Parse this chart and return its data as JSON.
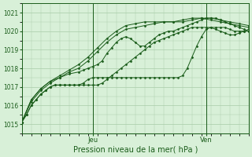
{
  "bg_color": "#d8f0d8",
  "grid_color": "#a8cca8",
  "line_color": "#1a5c1a",
  "xlabel": "Pression niveau de la mer( hPa )",
  "xlim": [
    0,
    96
  ],
  "ylim": [
    1014.5,
    1021.5
  ],
  "yticks": [
    1015,
    1016,
    1017,
    1018,
    1019,
    1020,
    1021
  ],
  "jeu_x": 30,
  "ven_x": 78,
  "series": [
    {
      "x": [
        0,
        2,
        4,
        6,
        8,
        10,
        12,
        14,
        16,
        18,
        20,
        22,
        24,
        26,
        28,
        30,
        32,
        34,
        36,
        38,
        40,
        42,
        44,
        46,
        48,
        50,
        52,
        54,
        56,
        58,
        60,
        62,
        64,
        66,
        68,
        70,
        72,
        74,
        76,
        78,
        80,
        82,
        84,
        86,
        88,
        90,
        92,
        94,
        96
      ],
      "y": [
        1015.1,
        1015.5,
        1016.0,
        1016.3,
        1016.6,
        1016.8,
        1017.0,
        1017.1,
        1017.1,
        1017.1,
        1017.1,
        1017.1,
        1017.1,
        1017.1,
        1017.1,
        1017.1,
        1017.1,
        1017.2,
        1017.4,
        1017.6,
        1017.8,
        1018.0,
        1018.2,
        1018.4,
        1018.6,
        1018.8,
        1019.0,
        1019.2,
        1019.4,
        1019.5,
        1019.6,
        1019.7,
        1019.8,
        1019.9,
        1020.0,
        1020.1,
        1020.2,
        1020.2,
        1020.2,
        1020.2,
        1020.2,
        1020.1,
        1020.0,
        1019.9,
        1019.8,
        1019.8,
        1019.9,
        1020.0,
        1020.1
      ]
    },
    {
      "x": [
        0,
        4,
        8,
        12,
        16,
        20,
        24,
        28,
        32,
        36,
        40,
        44,
        48,
        52,
        56,
        60,
        64,
        68,
        72,
        76,
        80,
        84,
        88,
        92,
        96
      ],
      "y": [
        1015.1,
        1016.2,
        1016.8,
        1017.2,
        1017.5,
        1017.8,
        1018.0,
        1018.4,
        1018.9,
        1019.4,
        1019.8,
        1020.1,
        1020.2,
        1020.3,
        1020.4,
        1020.5,
        1020.5,
        1020.6,
        1020.7,
        1020.7,
        1020.6,
        1020.5,
        1020.4,
        1020.3,
        1020.2
      ]
    },
    {
      "x": [
        0,
        4,
        8,
        12,
        16,
        20,
        24,
        28,
        32,
        36,
        40,
        44,
        48,
        52,
        56,
        60,
        64,
        68,
        72,
        76,
        80,
        84,
        88,
        92,
        96
      ],
      "y": [
        1015.1,
        1016.3,
        1016.9,
        1017.3,
        1017.6,
        1017.9,
        1018.2,
        1018.6,
        1019.1,
        1019.6,
        1020.0,
        1020.3,
        1020.4,
        1020.5,
        1020.5,
        1020.5,
        1020.5,
        1020.5,
        1020.6,
        1020.7,
        1020.7,
        1020.6,
        1020.5,
        1020.4,
        1020.3
      ]
    },
    {
      "x": [
        0,
        4,
        8,
        12,
        16,
        20,
        24,
        26,
        28,
        30,
        32,
        34,
        36,
        38,
        40,
        42,
        44,
        46,
        48,
        50,
        52,
        54,
        56,
        58,
        60,
        62,
        64,
        66,
        68,
        70,
        72,
        74,
        76,
        78,
        80,
        82,
        84,
        86,
        88,
        90,
        92,
        94,
        96
      ],
      "y": [
        1015.1,
        1016.3,
        1016.9,
        1017.3,
        1017.5,
        1017.7,
        1017.8,
        1017.9,
        1018.0,
        1018.1,
        1018.2,
        1018.4,
        1018.8,
        1019.1,
        1019.4,
        1019.6,
        1019.7,
        1019.6,
        1019.4,
        1019.2,
        1019.2,
        1019.4,
        1019.6,
        1019.8,
        1019.9,
        1020.0,
        1020.0,
        1020.1,
        1020.2,
        1020.3,
        1020.4,
        1020.5,
        1020.6,
        1020.7,
        1020.7,
        1020.7,
        1020.6,
        1020.5,
        1020.4,
        1020.3,
        1020.2,
        1020.1,
        1020.0
      ]
    },
    {
      "x": [
        0,
        2,
        4,
        6,
        8,
        10,
        12,
        14,
        16,
        18,
        20,
        22,
        24,
        26,
        28,
        30,
        32,
        34,
        36,
        38,
        40,
        42,
        44,
        46,
        48,
        50,
        52,
        54,
        56,
        58,
        60,
        62,
        64,
        66,
        68,
        70,
        72,
        74,
        76,
        78,
        80,
        82,
        84,
        86,
        88,
        90,
        92,
        94,
        96
      ],
      "y": [
        1015.1,
        1015.5,
        1016.0,
        1016.3,
        1016.6,
        1016.8,
        1017.0,
        1017.1,
        1017.1,
        1017.1,
        1017.1,
        1017.1,
        1017.1,
        1017.2,
        1017.4,
        1017.5,
        1017.5,
        1017.5,
        1017.5,
        1017.5,
        1017.5,
        1017.5,
        1017.5,
        1017.5,
        1017.5,
        1017.5,
        1017.5,
        1017.5,
        1017.5,
        1017.5,
        1017.5,
        1017.5,
        1017.5,
        1017.5,
        1017.6,
        1018.0,
        1018.6,
        1019.2,
        1019.7,
        1020.1,
        1020.2,
        1020.2,
        1020.2,
        1020.2,
        1020.1,
        1020.0,
        1020.0,
        1020.0,
        1020.0
      ]
    }
  ]
}
